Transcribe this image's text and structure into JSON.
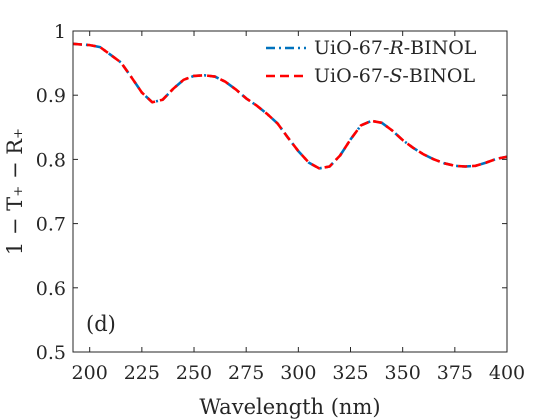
{
  "chart_data": {
    "type": "line",
    "panel_label": "(d)",
    "xlabel": "Wavelength (nm)",
    "ylabel": "1 − T₊ − R₊",
    "xlim": [
      192,
      400
    ],
    "ylim": [
      0.5,
      1.0
    ],
    "xticks": [
      200,
      225,
      250,
      275,
      300,
      325,
      350,
      375,
      400
    ],
    "yticks": [
      0.5,
      0.6,
      0.7,
      0.8,
      0.9,
      1
    ],
    "ytick_labels": [
      "0.5",
      "0.6",
      "0.7",
      "0.8",
      "0.9",
      "1"
    ],
    "grid": false,
    "legend_position": "top-right",
    "x": [
      192,
      196,
      200,
      205,
      210,
      215,
      220,
      225,
      230,
      235,
      240,
      245,
      250,
      255,
      260,
      265,
      270,
      275,
      280,
      285,
      290,
      295,
      300,
      305,
      310,
      315,
      320,
      325,
      330,
      335,
      340,
      345,
      350,
      355,
      360,
      365,
      370,
      375,
      380,
      385,
      390,
      395,
      400
    ],
    "series": [
      {
        "name_prefix": "UiO-67-",
        "name_italic": "R",
        "name_suffix": "-BINOL",
        "color": "#0072BD",
        "dash": "dashdot",
        "values": [
          0.98,
          0.979,
          0.978,
          0.975,
          0.963,
          0.951,
          0.928,
          0.904,
          0.889,
          0.893,
          0.91,
          0.924,
          0.93,
          0.931,
          0.929,
          0.921,
          0.909,
          0.895,
          0.884,
          0.871,
          0.856,
          0.834,
          0.813,
          0.795,
          0.786,
          0.789,
          0.806,
          0.831,
          0.853,
          0.86,
          0.857,
          0.845,
          0.83,
          0.818,
          0.808,
          0.8,
          0.794,
          0.79,
          0.789,
          0.79,
          0.795,
          0.801,
          0.804
        ]
      },
      {
        "name_prefix": "UiO-67-",
        "name_italic": "S",
        "name_suffix": "-BINOL",
        "color": "#FF0000",
        "dash": "dashed",
        "values": [
          0.98,
          0.979,
          0.978,
          0.975,
          0.963,
          0.951,
          0.928,
          0.904,
          0.889,
          0.893,
          0.91,
          0.924,
          0.93,
          0.931,
          0.929,
          0.921,
          0.909,
          0.895,
          0.884,
          0.871,
          0.856,
          0.834,
          0.813,
          0.795,
          0.786,
          0.789,
          0.806,
          0.831,
          0.853,
          0.86,
          0.857,
          0.845,
          0.83,
          0.818,
          0.808,
          0.8,
          0.794,
          0.79,
          0.789,
          0.79,
          0.795,
          0.801,
          0.804
        ]
      }
    ]
  }
}
